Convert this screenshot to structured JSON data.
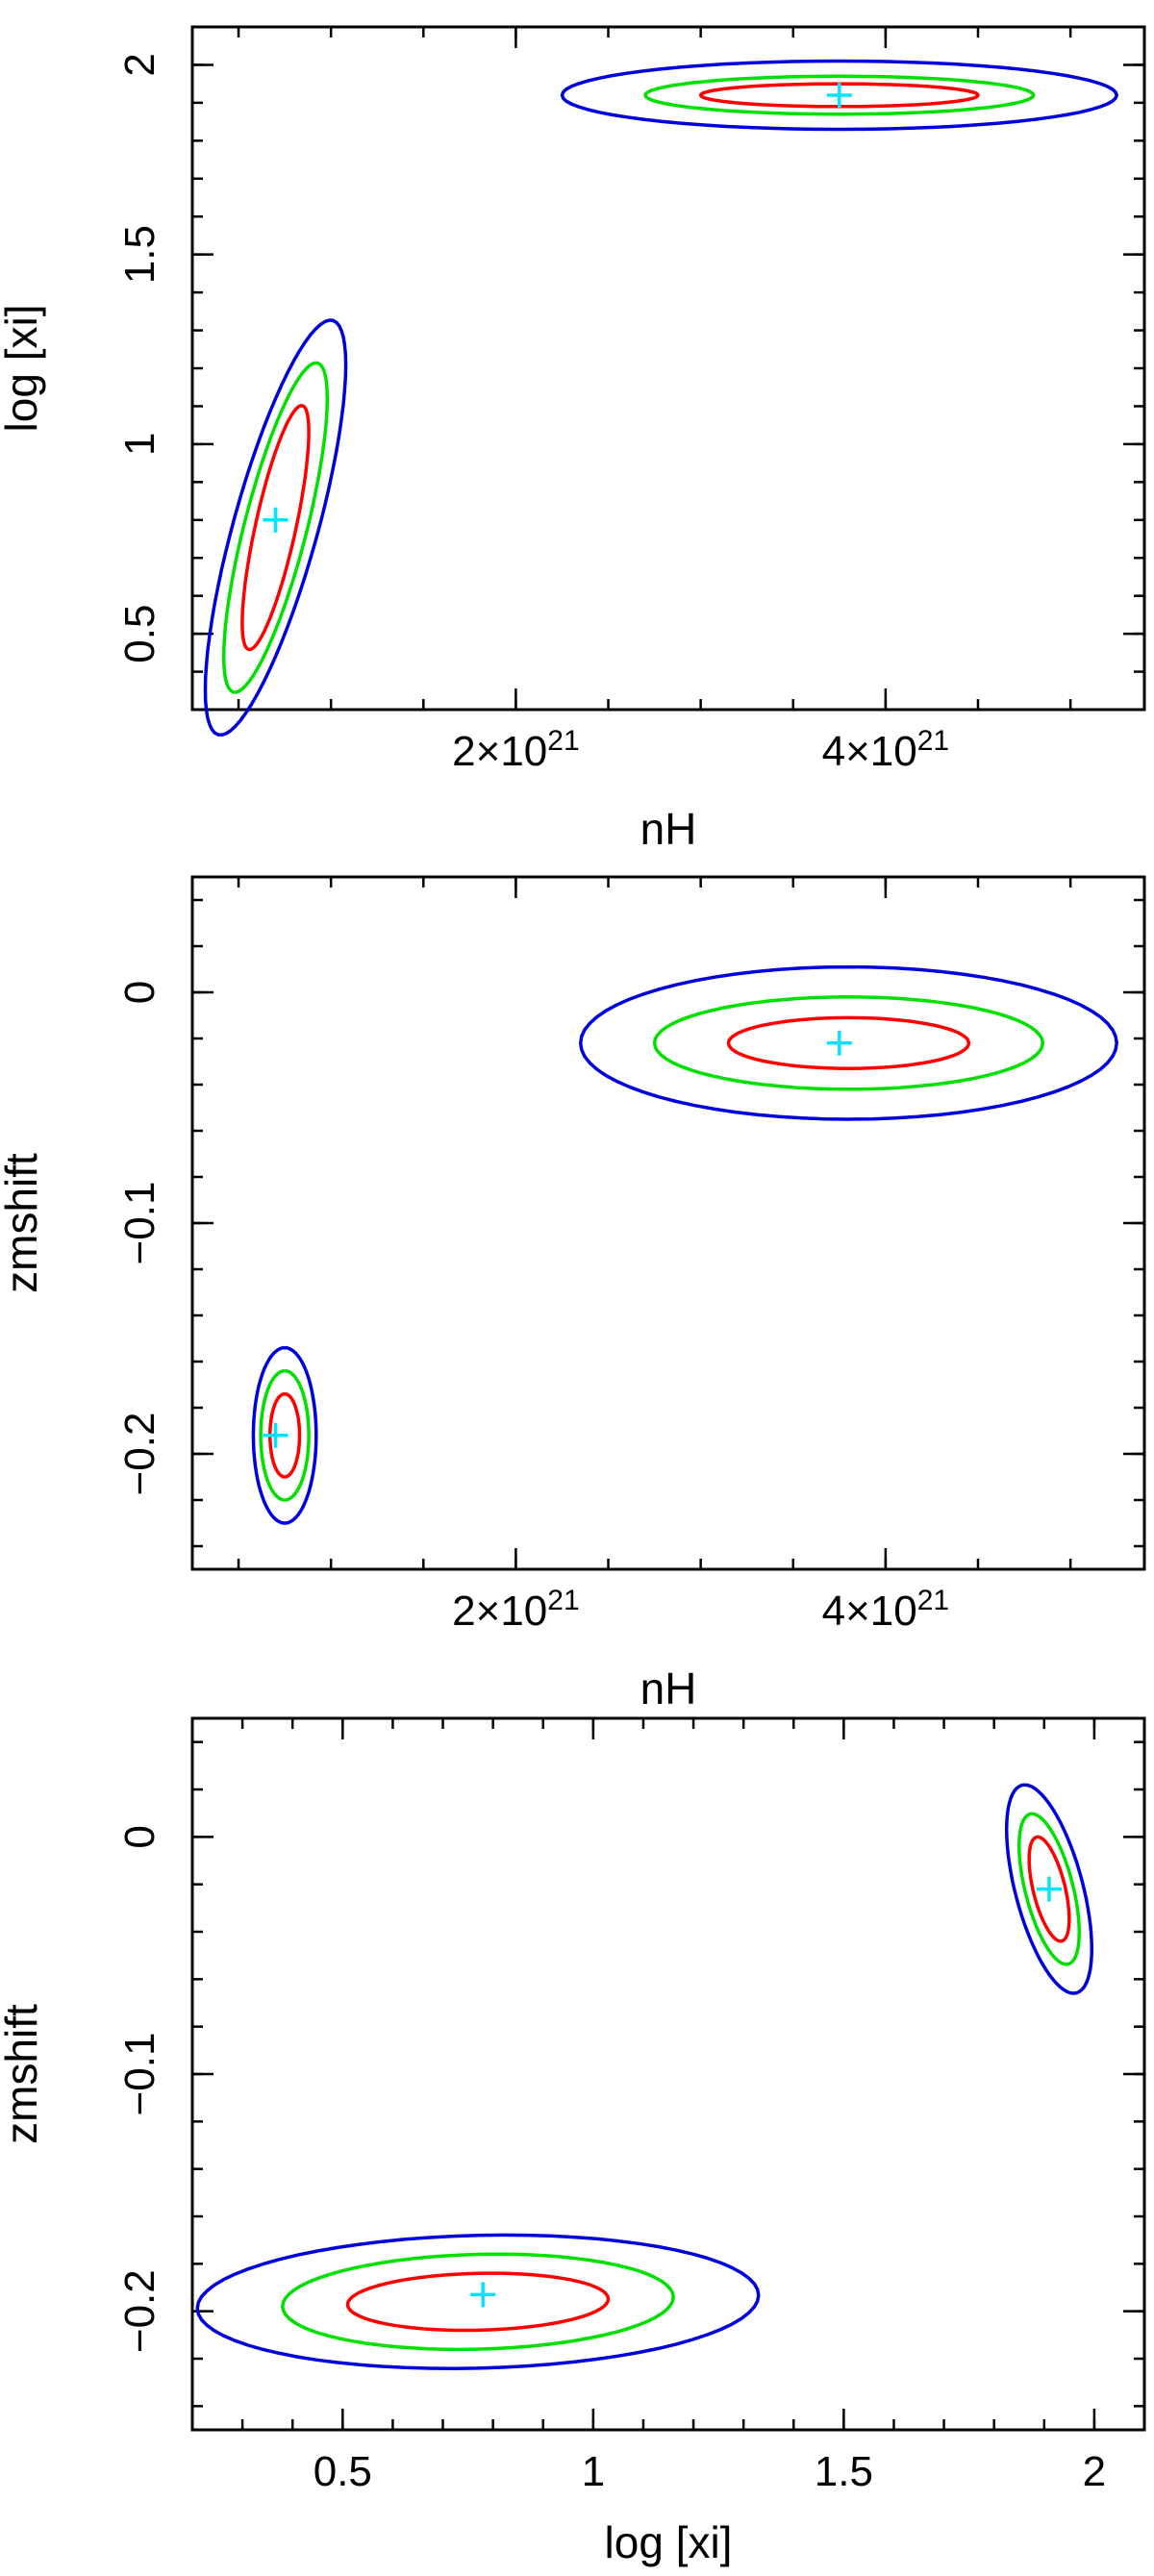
{
  "chart_data": [
    {
      "type": "contour",
      "xlabel": "nH",
      "ylabel": "log [xi]",
      "xlim": [
        2.5e+20,
        5.4e+21
      ],
      "ylim": [
        0.3,
        2.1
      ],
      "xticks": [
        {
          "value": 2e+21,
          "base": "2×10",
          "exp": "21"
        },
        {
          "value": 4e+21,
          "base": "4×10",
          "exp": "21"
        }
      ],
      "yticks": [
        {
          "value": 0.5,
          "label": "0.5"
        },
        {
          "value": 1,
          "label": "1"
        },
        {
          "value": 1.5,
          "label": "1.5"
        },
        {
          "value": 2,
          "label": "2"
        }
      ],
      "best_fit": [
        {
          "x": 7e+20,
          "y": 0.8
        },
        {
          "x": 3.75e+21,
          "y": 1.92
        }
      ],
      "regions": [
        {
          "cx": 7e+20,
          "cy": 0.78,
          "rx": [
            1.8e+20,
            2.8e+20,
            3.8e+20
          ],
          "ry": [
            0.2,
            0.27,
            0.34
          ],
          "tilt": 0.9
        },
        {
          "cx": 3.75e+21,
          "cy": 1.92,
          "rx": [
            7.5e+20,
            1.05e+21,
            1.5e+21
          ],
          "ry": [
            0.03,
            0.05,
            0.09
          ],
          "tilt": 0.0
        }
      ],
      "levels": [
        {
          "name": "inner",
          "color": "#ff0000"
        },
        {
          "name": "middle",
          "color": "#00e000"
        },
        {
          "name": "outer",
          "color": "#0000dd"
        }
      ]
    },
    {
      "type": "contour",
      "xlabel": "nH",
      "ylabel": "zmshift",
      "xlim": [
        2.5e+20,
        5.4e+21
      ],
      "ylim": [
        -0.25,
        0.05
      ],
      "xticks": [
        {
          "value": 2e+21,
          "base": "2×10",
          "exp": "21"
        },
        {
          "value": 4e+21,
          "base": "4×10",
          "exp": "21"
        }
      ],
      "yticks": [
        {
          "value": 0,
          "label": "0"
        },
        {
          "value": -0.1,
          "label": "−0.1"
        },
        {
          "value": -0.2,
          "label": "−0.2"
        }
      ],
      "best_fit": [
        {
          "x": 7e+20,
          "y": -0.192
        },
        {
          "x": 3.75e+21,
          "y": -0.022
        }
      ],
      "regions": [
        {
          "cx": 7.5e+20,
          "cy": -0.192,
          "rx": [
            8e+19,
            1.3e+20,
            1.7e+20
          ],
          "ry": [
            0.018,
            0.028,
            0.038
          ],
          "tilt": 0.0
        },
        {
          "cx": 3.8e+21,
          "cy": -0.022,
          "rx": [
            6.5e+20,
            1.05e+21,
            1.45e+21
          ],
          "ry": [
            0.011,
            0.02,
            0.033
          ],
          "tilt": 0.0
        }
      ],
      "levels": [
        {
          "name": "inner",
          "color": "#ff0000"
        },
        {
          "name": "middle",
          "color": "#00e000"
        },
        {
          "name": "outer",
          "color": "#0000dd"
        }
      ]
    },
    {
      "type": "contour",
      "xlabel": "log [xi]",
      "ylabel": "zmshift",
      "xlim": [
        0.2,
        2.1
      ],
      "ylim": [
        -0.25,
        0.05
      ],
      "xticks": [
        {
          "value": 0.5,
          "label": "0.5"
        },
        {
          "value": 1,
          "label": "1"
        },
        {
          "value": 1.5,
          "label": "1.5"
        },
        {
          "value": 2,
          "label": "2"
        }
      ],
      "yticks": [
        {
          "value": 0,
          "label": "0"
        },
        {
          "value": -0.1,
          "label": "−0.1"
        },
        {
          "value": -0.2,
          "label": "−0.2"
        }
      ],
      "best_fit": [
        {
          "x": 0.78,
          "y": -0.193
        },
        {
          "x": 1.91,
          "y": -0.022
        }
      ],
      "regions": [
        {
          "cx": 0.77,
          "cy": -0.196,
          "rx": [
            0.26,
            0.39,
            0.56
          ],
          "ry": [
            0.012,
            0.02,
            0.028
          ],
          "tilt": 0.07
        },
        {
          "cx": 1.91,
          "cy": -0.022,
          "rx": [
            0.04,
            0.06,
            0.085
          ],
          "ry": [
            0.018,
            0.026,
            0.036
          ],
          "tilt": -0.5
        }
      ],
      "levels": [
        {
          "name": "inner",
          "color": "#ff0000"
        },
        {
          "name": "middle",
          "color": "#00e000"
        },
        {
          "name": "outer",
          "color": "#0000dd"
        }
      ]
    }
  ]
}
